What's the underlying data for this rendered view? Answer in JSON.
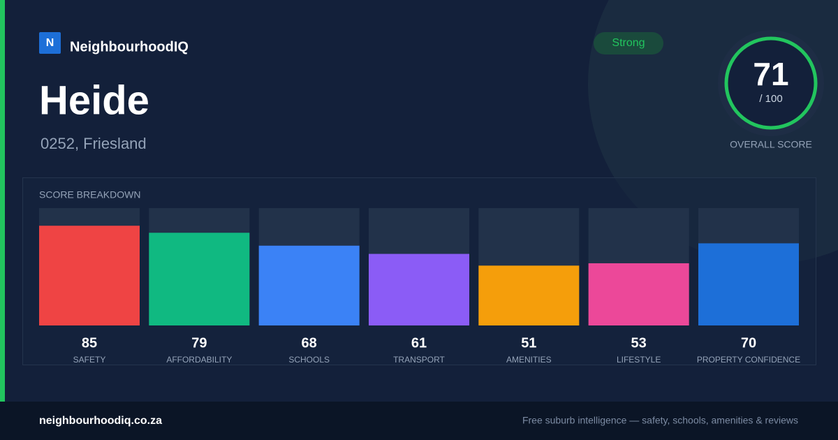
{
  "brand": {
    "logo_letter": "N",
    "name": "NeighbourhoodIQ"
  },
  "suburb": {
    "name": "Heide",
    "location": "0252, Friesland"
  },
  "badge": "Strong",
  "score": {
    "value": "71",
    "out_of": "/ 100",
    "label": "OVERALL SCORE"
  },
  "chart_data": {
    "type": "bar",
    "title": "SCORE BREAKDOWN",
    "categories": [
      "SAFETY",
      "AFFORDABILITY",
      "SCHOOLS",
      "TRANSPORT",
      "AMENITIES",
      "LIFESTYLE",
      "PROPERTY CONFIDENCE"
    ],
    "values": [
      85,
      79,
      68,
      61,
      51,
      53,
      70
    ],
    "colors": [
      "#ef4444",
      "#10b981",
      "#3b82f6",
      "#8b5cf6",
      "#f59e0b",
      "#ec4899",
      "#1d6fd8"
    ],
    "ylim": [
      0,
      100
    ]
  },
  "footer": {
    "site": "neighbourhoodiq.co.za",
    "tagline": "Free suburb intelligence — safety, schools, amenities & reviews"
  }
}
